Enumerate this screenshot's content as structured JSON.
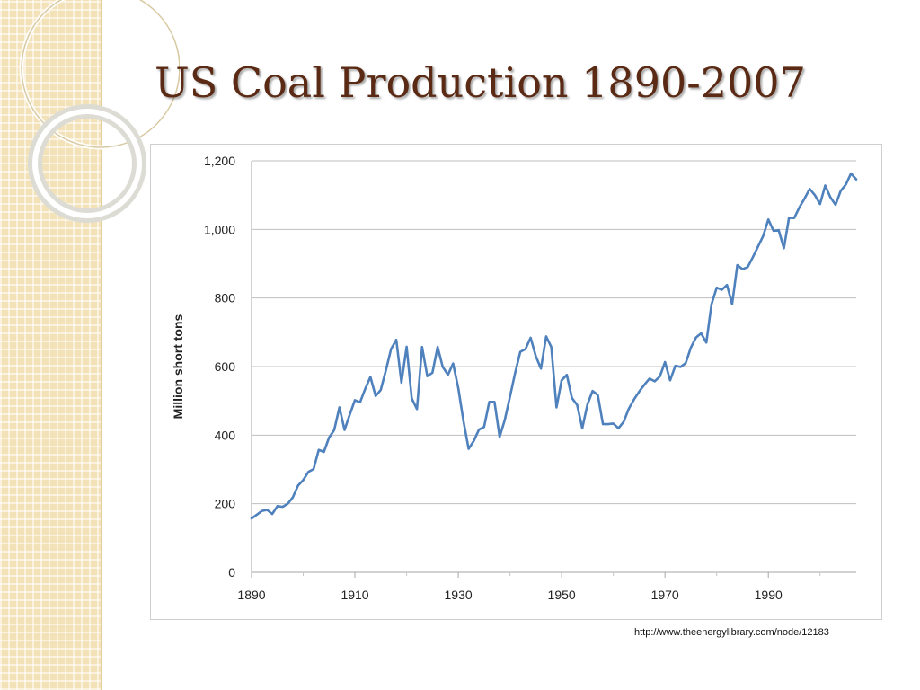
{
  "slide": {
    "title": "US Coal Production 1890-2007",
    "source": "http://www.theenergylibrary.com/node/12183"
  },
  "colors": {
    "title": "#5a2a14",
    "series": "#4f81bd",
    "grid": "#bfbfbf",
    "side_band": "#f3e2b8"
  },
  "decor_icons": [
    "ring-ornament"
  ],
  "chart_data": {
    "type": "line",
    "title": "",
    "xlabel": "",
    "ylabel": "Million short tons",
    "xlim": [
      1890,
      2007
    ],
    "ylim": [
      0,
      1200
    ],
    "x_ticks": [
      1890,
      1910,
      1930,
      1950,
      1970,
      1990
    ],
    "x_tick_labels": [
      "1890",
      "1910",
      "1930",
      "1950",
      "1970",
      "1990"
    ],
    "y_ticks": [
      0,
      200,
      400,
      600,
      800,
      1000,
      1200
    ],
    "y_tick_labels": [
      "0",
      "200",
      "400",
      "600",
      "800",
      "1,000",
      "1,200"
    ],
    "grid": true,
    "legend": "none",
    "series": [
      {
        "x": [
          1890,
          1891,
          1892,
          1893,
          1894,
          1895,
          1896,
          1897,
          1898,
          1899,
          1900,
          1901,
          1902,
          1903,
          1904,
          1905,
          1906,
          1907,
          1908,
          1909,
          1910,
          1911,
          1912,
          1913,
          1914,
          1915,
          1916,
          1917,
          1918,
          1919,
          1920,
          1921,
          1922,
          1923,
          1924,
          1925,
          1926,
          1927,
          1928,
          1929,
          1930,
          1931,
          1932,
          1933,
          1934,
          1935,
          1936,
          1937,
          1938,
          1939,
          1940,
          1941,
          1942,
          1943,
          1944,
          1945,
          1946,
          1947,
          1948,
          1949,
          1950,
          1951,
          1952,
          1953,
          1954,
          1955,
          1956,
          1957,
          1958,
          1959,
          1960,
          1961,
          1962,
          1963,
          1964,
          1965,
          1966,
          1967,
          1968,
          1969,
          1970,
          1971,
          1972,
          1973,
          1974,
          1975,
          1976,
          1977,
          1978,
          1979,
          1980,
          1981,
          1982,
          1983,
          1984,
          1985,
          1986,
          1987,
          1988,
          1989,
          1990,
          1991,
          1992,
          1993,
          1994,
          1995,
          1996,
          1997,
          1998,
          1999,
          2000,
          2001,
          2002,
          2003,
          2004,
          2005,
          2006,
          2007
        ],
        "values": [
          157,
          168,
          179,
          182,
          170,
          193,
          191,
          200,
          219,
          253,
          269,
          293,
          301,
          357,
          351,
          393,
          415,
          481,
          415,
          460,
          502,
          496,
          535,
          570,
          514,
          532,
          590,
          651,
          678,
          553,
          658,
          507,
          476,
          657,
          572,
          582,
          657,
          599,
          576,
          609,
          537,
          442,
          360,
          383,
          416,
          424,
          497,
          497,
          395,
          445,
          512,
          582,
          643,
          651,
          684,
          630,
          594,
          688,
          657,
          481,
          560,
          576,
          508,
          488,
          420,
          490,
          529,
          517,
          432,
          432,
          434,
          420,
          439,
          477,
          504,
          527,
          547,
          565,
          557,
          571,
          613,
          560,
          602,
          599,
          610,
          655,
          685,
          697,
          670,
          781,
          830,
          824,
          838,
          782,
          896,
          884,
          890,
          919,
          950,
          981,
          1029,
          996,
          998,
          945,
          1034,
          1033,
          1064,
          1090,
          1118,
          1100,
          1074,
          1128,
          1094,
          1072,
          1112,
          1131,
          1163,
          1146
        ]
      }
    ]
  }
}
